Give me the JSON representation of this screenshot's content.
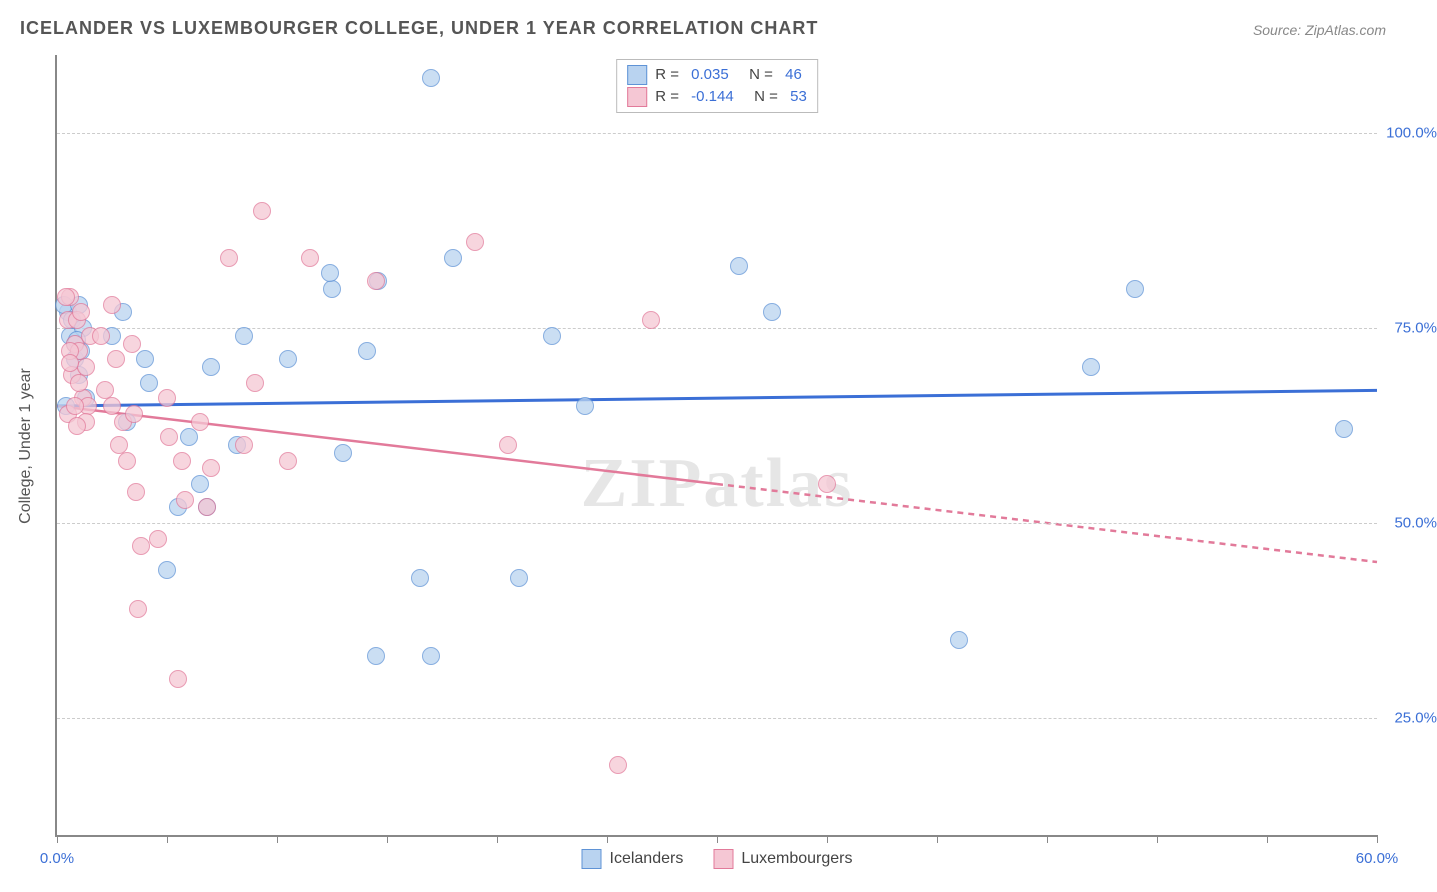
{
  "title": "ICELANDER VS LUXEMBOURGER COLLEGE, UNDER 1 YEAR CORRELATION CHART",
  "source": "Source: ZipAtlas.com",
  "watermark": "ZIPatlas",
  "y_axis_title": "College, Under 1 year",
  "chart": {
    "type": "scatter",
    "xlim": [
      0,
      60
    ],
    "ylim": [
      10,
      110
    ],
    "y_ticks": [
      25,
      50,
      75,
      100
    ],
    "y_tick_labels": [
      "25.0%",
      "50.0%",
      "75.0%",
      "100.0%"
    ],
    "x_ticks": [
      0,
      5,
      10,
      15,
      20,
      25,
      30,
      35,
      40,
      45,
      50,
      55,
      60
    ],
    "x_label_start": "0.0%",
    "x_label_end": "60.0%",
    "background": "#ffffff",
    "grid_color": "#cccccc",
    "axis_color": "#888888",
    "series": {
      "icelanders": {
        "label": "Icelanders",
        "fill": "#b9d3f0",
        "stroke": "#5f93d6",
        "marker_size": 16,
        "opacity": 0.75,
        "points": [
          [
            0.5,
            77
          ],
          [
            0.6,
            74
          ],
          [
            0.8,
            73
          ],
          [
            0.8,
            71
          ],
          [
            0.7,
            76
          ],
          [
            1.0,
            69
          ],
          [
            1.2,
            75
          ],
          [
            1.1,
            72
          ],
          [
            1.3,
            66
          ],
          [
            0.4,
            65
          ],
          [
            0.3,
            78
          ],
          [
            0.9,
            73.5
          ],
          [
            1.0,
            78
          ],
          [
            3.0,
            77
          ],
          [
            4.0,
            71
          ],
          [
            3.2,
            63
          ],
          [
            2.5,
            74
          ],
          [
            4.2,
            68
          ],
          [
            5.5,
            52
          ],
          [
            6.5,
            55
          ],
          [
            6.8,
            52
          ],
          [
            7.0,
            70
          ],
          [
            5.0,
            44
          ],
          [
            6.0,
            61
          ],
          [
            8.5,
            74
          ],
          [
            8.2,
            60
          ],
          [
            10.5,
            71
          ],
          [
            12.5,
            80
          ],
          [
            13.0,
            59
          ],
          [
            12.4,
            82
          ],
          [
            14.1,
            72
          ],
          [
            14.6,
            81
          ],
          [
            18.0,
            84
          ],
          [
            16.5,
            43
          ],
          [
            17.0,
            33
          ],
          [
            14.5,
            33
          ],
          [
            17.0,
            107
          ],
          [
            21.0,
            43
          ],
          [
            22.5,
            74
          ],
          [
            24.0,
            65
          ],
          [
            31.0,
            83
          ],
          [
            32.5,
            77
          ],
          [
            41.0,
            35
          ],
          [
            47.0,
            70
          ],
          [
            49.0,
            80
          ],
          [
            58.5,
            62
          ]
        ],
        "trend": {
          "y_at_xmin": 65.0,
          "y_at_xmax": 67.0,
          "color": "#3b6fd6",
          "width": 3,
          "dash": null,
          "solid_until_x": 60
        }
      },
      "luxembourgers": {
        "label": "Luxembourgers",
        "fill": "#f5c7d4",
        "stroke": "#e27a9a",
        "marker_size": 16,
        "opacity": 0.75,
        "points": [
          [
            0.5,
            76
          ],
          [
            0.6,
            79
          ],
          [
            0.8,
            73
          ],
          [
            0.9,
            76
          ],
          [
            1.0,
            72
          ],
          [
            0.7,
            69
          ],
          [
            1.1,
            77
          ],
          [
            0.4,
            79
          ],
          [
            0.6,
            72
          ],
          [
            0.5,
            64
          ],
          [
            1.2,
            66
          ],
          [
            1.3,
            70
          ],
          [
            1.5,
            74
          ],
          [
            1.0,
            68
          ],
          [
            1.4,
            65
          ],
          [
            1.3,
            63
          ],
          [
            0.6,
            70.5
          ],
          [
            0.8,
            65
          ],
          [
            0.9,
            62.5
          ],
          [
            2.0,
            74
          ],
          [
            2.5,
            65
          ],
          [
            2.7,
            71
          ],
          [
            2.5,
            78
          ],
          [
            2.2,
            67
          ],
          [
            2.8,
            60
          ],
          [
            3.0,
            63
          ],
          [
            3.4,
            73
          ],
          [
            3.2,
            58
          ],
          [
            3.5,
            64
          ],
          [
            3.6,
            54
          ],
          [
            3.8,
            47
          ],
          [
            4.6,
            48
          ],
          [
            3.7,
            39
          ],
          [
            5.0,
            66
          ],
          [
            5.1,
            61
          ],
          [
            5.5,
            30
          ],
          [
            5.8,
            53
          ],
          [
            5.7,
            58
          ],
          [
            6.5,
            63
          ],
          [
            6.8,
            52
          ],
          [
            7.0,
            57
          ],
          [
            7.8,
            84
          ],
          [
            8.5,
            60
          ],
          [
            9.3,
            90
          ],
          [
            9.0,
            68
          ],
          [
            10.5,
            58
          ],
          [
            11.5,
            84
          ],
          [
            14.5,
            81
          ],
          [
            19.0,
            86
          ],
          [
            20.5,
            60
          ],
          [
            25.5,
            19
          ],
          [
            27.0,
            76
          ],
          [
            35.0,
            55
          ]
        ],
        "trend": {
          "y_at_xmin": 65.0,
          "y_at_xmax": 45.0,
          "color": "#e27a9a",
          "width": 2.5,
          "dash": "6,5",
          "solid_until_x": 30
        }
      }
    },
    "stats": [
      {
        "series": "icelanders",
        "R": "0.035",
        "N": "46"
      },
      {
        "series": "luxembourgers",
        "R": "-0.144",
        "N": "53"
      }
    ]
  }
}
